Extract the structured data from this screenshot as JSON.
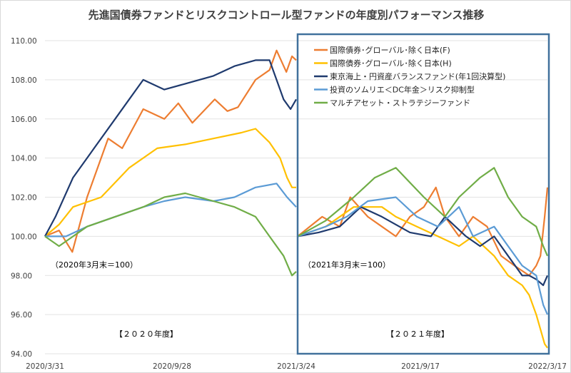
{
  "chart_data": {
    "type": "line",
    "title": "先進国債券ファンドとリスクコントロール型ファンドの年度別パフォーマンス推移",
    "xlabel": "",
    "ylabel": "",
    "x_unit": "days since 2020/3/31",
    "xlim": [
      0,
      716
    ],
    "ylim": [
      94,
      110
    ],
    "yticks": [
      "110.00",
      "108.00",
      "106.00",
      "104.00",
      "102.00",
      "100.00",
      "98.00",
      "96.00",
      "94.00"
    ],
    "xticks": [
      {
        "label": "2020/3/31",
        "x": 0
      },
      {
        "label": "2020/9/28",
        "x": 181
      },
      {
        "label": "2021/3/24",
        "x": 358
      },
      {
        "label": "2021/9/17",
        "x": 535
      },
      {
        "label": "2022/3/17",
        "x": 716
      }
    ],
    "grid": true,
    "legend_position": "top-right",
    "annotations": [
      "（2020年3月末＝100）",
      "（2021年3月末＝100）",
      "【２０２０年度】",
      "【２０２１年度】"
    ],
    "series": [
      {
        "name": "国際債券･グローバル･除く日本(F)",
        "color": "#ED7D31",
        "segments": [
          [
            [
              0,
              100
            ],
            [
              20,
              100.3
            ],
            [
              39,
              99.2
            ],
            [
              60,
              102
            ],
            [
              90,
              105
            ],
            [
              110,
              104.5
            ],
            [
              140,
              106.5
            ],
            [
              170,
              106
            ],
            [
              190,
              106.8
            ],
            [
              210,
              105.8
            ],
            [
              242,
              107
            ],
            [
              260,
              106.4
            ],
            [
              275,
              106.6
            ],
            [
              300,
              108
            ],
            [
              320,
              108.5
            ],
            [
              330,
              109.5
            ],
            [
              344,
              108.4
            ],
            [
              352,
              109.2
            ],
            [
              358,
              109
            ]
          ],
          [
            [
              360,
              100
            ],
            [
              395,
              101
            ],
            [
              420,
              100.5
            ],
            [
              435,
              102
            ],
            [
              460,
              101
            ],
            [
              480,
              100.5
            ],
            [
              500,
              100
            ],
            [
              520,
              101
            ],
            [
              540,
              101.5
            ],
            [
              557,
              102.5
            ],
            [
              570,
              101
            ],
            [
              590,
              100
            ],
            [
              610,
              101
            ],
            [
              630,
              100.5
            ],
            [
              650,
              99
            ],
            [
              669,
              98.5
            ],
            [
              690,
              98
            ],
            [
              700,
              98.5
            ],
            [
              706,
              99
            ],
            [
              712,
              101
            ],
            [
              716,
              102.5
            ]
          ]
        ]
      },
      {
        "name": "国際債券･グローバル･除く日本(H)",
        "color": "#FFC000",
        "segments": [
          [
            [
              0,
              100
            ],
            [
              20,
              100.6
            ],
            [
              40,
              101.5
            ],
            [
              80,
              102
            ],
            [
              120,
              103.5
            ],
            [
              160,
              104.5
            ],
            [
              200,
              104.7
            ],
            [
              240,
              105
            ],
            [
              280,
              105.3
            ],
            [
              300,
              105.5
            ],
            [
              320,
              104.8
            ],
            [
              335,
              104
            ],
            [
              345,
              103
            ],
            [
              352,
              102.5
            ],
            [
              358,
              102.5
            ]
          ],
          [
            [
              360,
              100
            ],
            [
              400,
              100.5
            ],
            [
              440,
              101.5
            ],
            [
              480,
              101.5
            ],
            [
              500,
              101
            ],
            [
              530,
              100.5
            ],
            [
              560,
              100
            ],
            [
              590,
              99.5
            ],
            [
              610,
              100
            ],
            [
              640,
              99
            ],
            [
              660,
              98
            ],
            [
              680,
              97.5
            ],
            [
              690,
              97
            ],
            [
              700,
              96
            ],
            [
              712,
              94.5
            ],
            [
              716,
              94.3
            ]
          ]
        ]
      },
      {
        "name": "東京海上・円資産バランスファンド(年1回決算型)",
        "color": "#1F3A6E",
        "segments": [
          [
            [
              0,
              100
            ],
            [
              15,
              101
            ],
            [
              40,
              103
            ],
            [
              70,
              104.5
            ],
            [
              100,
              106
            ],
            [
              120,
              107
            ],
            [
              140,
              108
            ],
            [
              170,
              107.5
            ],
            [
              200,
              107.8
            ],
            [
              240,
              108.2
            ],
            [
              270,
              108.7
            ],
            [
              300,
              109
            ],
            [
              320,
              109
            ],
            [
              330,
              108
            ],
            [
              340,
              107
            ],
            [
              350,
              106.5
            ],
            [
              358,
              107
            ]
          ],
          [
            [
              360,
              100
            ],
            [
              390,
              100.2
            ],
            [
              420,
              100.5
            ],
            [
              450,
              101.5
            ],
            [
              480,
              101
            ],
            [
              520,
              100.2
            ],
            [
              550,
              100
            ],
            [
              570,
              101
            ],
            [
              600,
              100
            ],
            [
              620,
              99.5
            ],
            [
              640,
              100
            ],
            [
              660,
              99
            ],
            [
              680,
              98
            ],
            [
              690,
              98
            ],
            [
              700,
              97.8
            ],
            [
              710,
              97.5
            ],
            [
              716,
              98
            ]
          ]
        ]
      },
      {
        "name": "投資のソムリエ＜DC年金＞リスク抑制型",
        "color": "#5B9BD5",
        "segments": [
          [
            [
              0,
              100
            ],
            [
              30,
              100
            ],
            [
              60,
              100.5
            ],
            [
              100,
              101
            ],
            [
              140,
              101.5
            ],
            [
              170,
              101.8
            ],
            [
              200,
              102
            ],
            [
              240,
              101.8
            ],
            [
              270,
              102
            ],
            [
              300,
              102.5
            ],
            [
              330,
              102.7
            ],
            [
              345,
              102
            ],
            [
              358,
              101.5
            ]
          ],
          [
            [
              360,
              100
            ],
            [
              400,
              100.5
            ],
            [
              430,
              101
            ],
            [
              460,
              101.8
            ],
            [
              500,
              102
            ],
            [
              530,
              101
            ],
            [
              560,
              100.5
            ],
            [
              590,
              101.5
            ],
            [
              610,
              100
            ],
            [
              640,
              100.5
            ],
            [
              660,
              99.5
            ],
            [
              680,
              98.5
            ],
            [
              700,
              98
            ],
            [
              710,
              96.5
            ],
            [
              716,
              96
            ]
          ]
        ]
      },
      {
        "name": "マルチアセット・ストラテジーファンド",
        "color": "#70AD47",
        "segments": [
          [
            [
              0,
              100
            ],
            [
              20,
              99.5
            ],
            [
              60,
              100.5
            ],
            [
              100,
              101
            ],
            [
              140,
              101.5
            ],
            [
              170,
              102
            ],
            [
              200,
              102.2
            ],
            [
              240,
              101.8
            ],
            [
              270,
              101.5
            ],
            [
              300,
              101
            ],
            [
              320,
              100
            ],
            [
              340,
              99
            ],
            [
              352,
              98
            ],
            [
              358,
              98.2
            ]
          ],
          [
            [
              360,
              100
            ],
            [
              400,
              100.8
            ],
            [
              440,
              102
            ],
            [
              470,
              103
            ],
            [
              500,
              103.5
            ],
            [
              540,
              102
            ],
            [
              570,
              101
            ],
            [
              590,
              102
            ],
            [
              620,
              103
            ],
            [
              640,
              103.5
            ],
            [
              660,
              102
            ],
            [
              680,
              101
            ],
            [
              700,
              100.5
            ],
            [
              710,
              99.5
            ],
            [
              716,
              99
            ]
          ]
        ]
      }
    ],
    "highlight_box_color": "#41719C"
  }
}
